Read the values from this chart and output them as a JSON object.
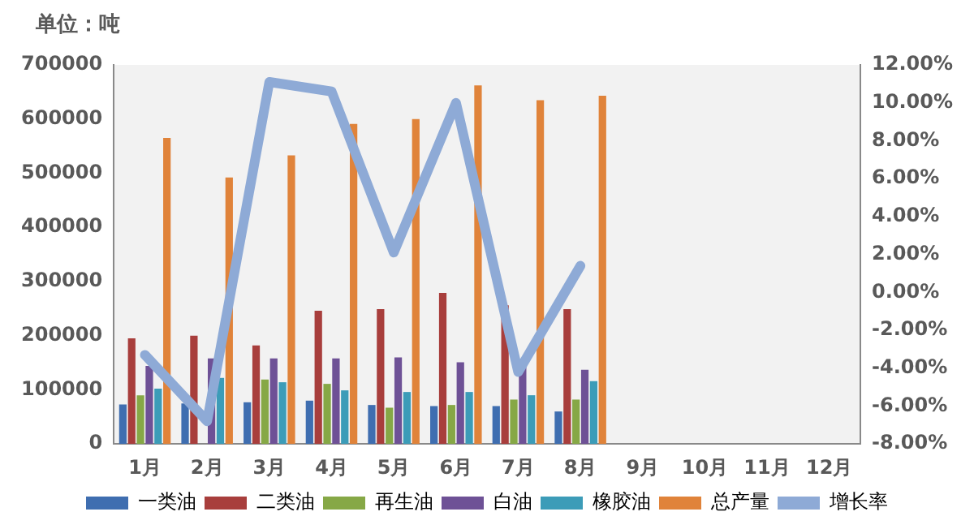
{
  "chart_data": {
    "type": "bar",
    "ylabel": "单位：吨",
    "categories": [
      "1月",
      "2月",
      "3月",
      "4月",
      "5月",
      "6月",
      "7月",
      "8月",
      "9月",
      "10月",
      "11月",
      "12月"
    ],
    "series": [
      {
        "name": "一类油",
        "color": "#3f6eb0",
        "values": [
          73000,
          75000,
          77000,
          80000,
          72000,
          70000,
          70000,
          60000,
          null,
          null,
          null,
          null
        ]
      },
      {
        "name": "二类油",
        "color": "#a83e3c",
        "values": [
          195000,
          200000,
          182000,
          246000,
          249000,
          279000,
          256000,
          249000,
          null,
          null,
          null,
          null
        ]
      },
      {
        "name": "再生油",
        "color": "#86a846",
        "values": [
          90000,
          null,
          119000,
          111000,
          67000,
          72000,
          82000,
          82000,
          null,
          null,
          null,
          null
        ]
      },
      {
        "name": "白油",
        "color": "#6e5196",
        "values": [
          144000,
          158000,
          158000,
          158000,
          160000,
          151000,
          145000,
          137000,
          null,
          null,
          null,
          null
        ]
      },
      {
        "name": "橡胶油",
        "color": "#3c9cb8",
        "values": [
          102000,
          122000,
          114000,
          99000,
          96000,
          96000,
          90000,
          116000,
          null,
          null,
          null,
          null
        ]
      },
      {
        "name": "总产量",
        "color": "#e0833a",
        "values": [
          565000,
          492000,
          533000,
          591000,
          600000,
          662000,
          635000,
          643000,
          null,
          null,
          null,
          null
        ]
      },
      {
        "name": "增长率",
        "type": "line",
        "axis": "y2",
        "color": "#8eaad6",
        "line_style": "solid",
        "values": [
          -3.3,
          -6.8,
          11.1,
          10.6,
          2.1,
          10.0,
          -4.2,
          1.4,
          null,
          null,
          null,
          null
        ]
      }
    ],
    "ylim": [
      0,
      700000
    ],
    "yticks": [
      0,
      100000,
      200000,
      300000,
      400000,
      500000,
      600000,
      700000
    ],
    "y2lim": [
      -8,
      12
    ],
    "y2ticks": [
      {
        "value": -8,
        "label": "-8.00%"
      },
      {
        "value": -6,
        "label": "-6.00%"
      },
      {
        "value": -4,
        "label": "-4.00%"
      },
      {
        "value": -2,
        "label": "-2.00%"
      },
      {
        "value": 0,
        "label": "0.00%"
      },
      {
        "value": 2,
        "label": "2.00%"
      },
      {
        "value": 4,
        "label": "4.00%"
      },
      {
        "value": 6,
        "label": "6.00%"
      },
      {
        "value": 8,
        "label": "8.00%"
      },
      {
        "value": 10,
        "label": "10.00%"
      },
      {
        "value": 12,
        "label": "12.00%"
      }
    ],
    "grid": false,
    "legend": "bottom",
    "marker": "none"
  }
}
